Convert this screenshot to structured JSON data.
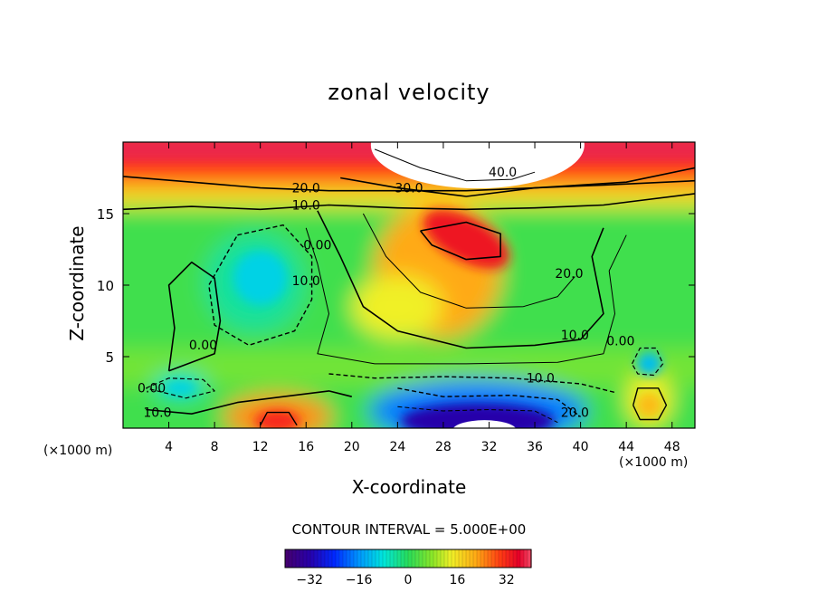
{
  "chart_data": {
    "type": "heatmap",
    "title": "zonal velocity",
    "xlabel": "X-coordinate",
    "ylabel": "Z-coordinate",
    "x_unit_label": "(×1000 m)",
    "x_ticks": [
      4,
      8,
      12,
      16,
      20,
      24,
      28,
      32,
      36,
      40,
      44,
      48
    ],
    "y_ticks": [
      5,
      10,
      15
    ],
    "xlim": [
      0,
      50
    ],
    "ylim": [
      0,
      20
    ],
    "contour_interval_label": "CONTOUR INTERVAL = 5.000E+00",
    "colorbar": {
      "ticks": [
        -32,
        -16,
        0,
        16,
        32
      ],
      "tick_labels": [
        "−32",
        "−16",
        "0",
        "16",
        "32"
      ],
      "range": [
        -40,
        40
      ]
    },
    "contour_labels": [
      {
        "text": "40.0",
        "x": 33.2,
        "y": 17.6
      },
      {
        "text": "30.0",
        "x": 25.0,
        "y": 16.5
      },
      {
        "text": "20.0",
        "x": 16.0,
        "y": 16.5
      },
      {
        "text": "10.0",
        "x": 16.0,
        "y": 15.3
      },
      {
        "text": "0.00",
        "x": 17.0,
        "y": 12.5
      },
      {
        "text": "10.0",
        "x": 16.0,
        "y": 10.0
      },
      {
        "text": "20.0",
        "x": 39.0,
        "y": 10.5
      },
      {
        "text": "10.0",
        "x": 39.5,
        "y": 6.2
      },
      {
        "text": "0.00",
        "x": 43.5,
        "y": 5.8
      },
      {
        "text": "0.00",
        "x": 7.0,
        "y": 5.5
      },
      {
        "text": "0.00",
        "x": 2.5,
        "y": 2.5
      },
      {
        "text": "10.0",
        "x": 3.0,
        "y": 0.8
      },
      {
        "text": "10.0",
        "x": 36.5,
        "y": 3.2
      },
      {
        "text": "20.0",
        "x": 39.5,
        "y": 0.8
      }
    ],
    "features": [
      {
        "kind": "jet-maximum",
        "x": 30,
        "y": 13.2,
        "value": 35
      },
      {
        "kind": "surface-maximum",
        "x": 31,
        "y": 19.5,
        "value": 45
      },
      {
        "kind": "minimum",
        "x": 12,
        "y": 10.5,
        "value": -10
      },
      {
        "kind": "minimum",
        "x": 31,
        "y": 0.5,
        "value": -38
      },
      {
        "kind": "maximum",
        "x": 13.5,
        "y": 0.6,
        "value": 30
      },
      {
        "kind": "maximum",
        "x": 46,
        "y": 1.5,
        "value": 20
      },
      {
        "kind": "minimum",
        "x": 46,
        "y": 4.5,
        "value": -12
      },
      {
        "kind": "minimum",
        "x": 5,
        "y": 2.8,
        "value": -8
      }
    ]
  }
}
